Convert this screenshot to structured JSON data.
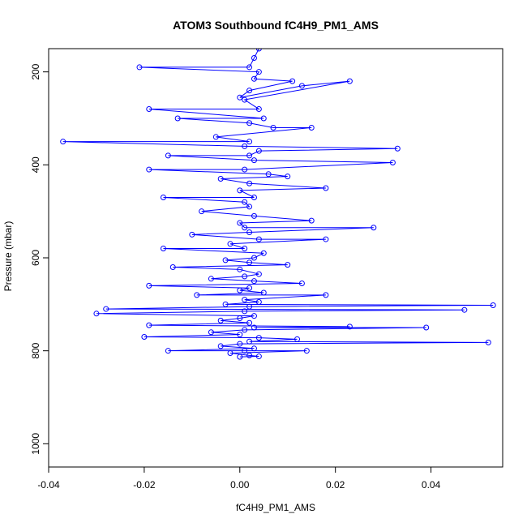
{
  "chart_data": {
    "type": "scatter",
    "title": "ATOM3 Southbound fC4H9_PM1_AMS",
    "xlabel": "fC4H9_PM1_AMS",
    "ylabel": "Pressure (mbar)",
    "xlim": [
      -0.04,
      0.055
    ],
    "ylim": [
      1050,
      150
    ],
    "y_reversed": true,
    "x_ticks": [
      -0.04,
      -0.02,
      0.0,
      0.02,
      0.04
    ],
    "x_tick_labels": [
      "-0.04",
      "-0.02",
      "0.00",
      "0.02",
      "0.04"
    ],
    "y_ticks": [
      200,
      400,
      600,
      800,
      1000
    ],
    "y_tick_labels": [
      "200",
      "400",
      "600",
      "800",
      "1000"
    ],
    "grid": false,
    "legend": "none",
    "series_color": "#0000FF",
    "mode": "lines+markers",
    "series": [
      {
        "points": [
          [
            0.004,
            150
          ],
          [
            0.003,
            170
          ],
          [
            0.002,
            190
          ],
          [
            -0.021,
            190
          ],
          [
            0.004,
            200
          ],
          [
            0.003,
            215
          ],
          [
            0.011,
            220
          ],
          [
            0.002,
            240
          ],
          [
            0.0,
            255
          ],
          [
            0.013,
            230
          ],
          [
            0.023,
            220
          ],
          [
            0.001,
            260
          ],
          [
            0.004,
            280
          ],
          [
            -0.019,
            280
          ],
          [
            0.005,
            300
          ],
          [
            -0.013,
            300
          ],
          [
            0.002,
            310
          ],
          [
            0.007,
            320
          ],
          [
            0.015,
            320
          ],
          [
            -0.005,
            340
          ],
          [
            0.002,
            350
          ],
          [
            -0.037,
            350
          ],
          [
            0.001,
            360
          ],
          [
            0.033,
            365
          ],
          [
            0.004,
            370
          ],
          [
            0.002,
            380
          ],
          [
            -0.015,
            380
          ],
          [
            0.003,
            390
          ],
          [
            0.032,
            395
          ],
          [
            0.001,
            410
          ],
          [
            -0.019,
            410
          ],
          [
            0.006,
            420
          ],
          [
            0.01,
            425
          ],
          [
            -0.004,
            430
          ],
          [
            0.002,
            440
          ],
          [
            0.018,
            450
          ],
          [
            0.0,
            455
          ],
          [
            0.003,
            470
          ],
          [
            -0.016,
            470
          ],
          [
            0.001,
            480
          ],
          [
            0.002,
            490
          ],
          [
            -0.008,
            500
          ],
          [
            0.003,
            510
          ],
          [
            0.015,
            520
          ],
          [
            0.0,
            525
          ],
          [
            0.001,
            535
          ],
          [
            0.028,
            535
          ],
          [
            0.002,
            545
          ],
          [
            -0.01,
            550
          ],
          [
            0.004,
            560
          ],
          [
            0.018,
            560
          ],
          [
            -0.002,
            570
          ],
          [
            0.001,
            580
          ],
          [
            -0.016,
            580
          ],
          [
            0.005,
            590
          ],
          [
            0.003,
            600
          ],
          [
            -0.003,
            605
          ],
          [
            0.002,
            610
          ],
          [
            0.01,
            615
          ],
          [
            -0.014,
            620
          ],
          [
            0.0,
            625
          ],
          [
            0.004,
            635
          ],
          [
            0.001,
            640
          ],
          [
            -0.006,
            645
          ],
          [
            0.003,
            650
          ],
          [
            0.013,
            655
          ],
          [
            -0.019,
            660
          ],
          [
            0.002,
            665
          ],
          [
            0.0,
            670
          ],
          [
            0.005,
            675
          ],
          [
            -0.009,
            680
          ],
          [
            0.018,
            680
          ],
          [
            0.001,
            690
          ],
          [
            0.004,
            695
          ],
          [
            -0.003,
            700
          ],
          [
            0.053,
            702
          ],
          [
            0.002,
            705
          ],
          [
            -0.028,
            710
          ],
          [
            0.047,
            712
          ],
          [
            0.001,
            715
          ],
          [
            -0.03,
            720
          ],
          [
            0.003,
            725
          ],
          [
            0.0,
            730
          ],
          [
            -0.004,
            735
          ],
          [
            0.002,
            740
          ],
          [
            -0.019,
            745
          ],
          [
            0.023,
            748
          ],
          [
            0.003,
            750
          ],
          [
            0.039,
            750
          ],
          [
            0.001,
            755
          ],
          [
            -0.006,
            760
          ],
          [
            0.0,
            765
          ],
          [
            -0.02,
            770
          ],
          [
            0.004,
            772
          ],
          [
            0.012,
            775
          ],
          [
            0.002,
            780
          ],
          [
            0.052,
            782
          ],
          [
            0.0,
            785
          ],
          [
            -0.004,
            790
          ],
          [
            0.003,
            795
          ],
          [
            -0.015,
            800
          ],
          [
            0.001,
            800
          ],
          [
            0.014,
            800
          ],
          [
            -0.002,
            805
          ],
          [
            0.002,
            810
          ],
          [
            0.004,
            812
          ],
          [
            0.0,
            813
          ]
        ]
      }
    ]
  }
}
